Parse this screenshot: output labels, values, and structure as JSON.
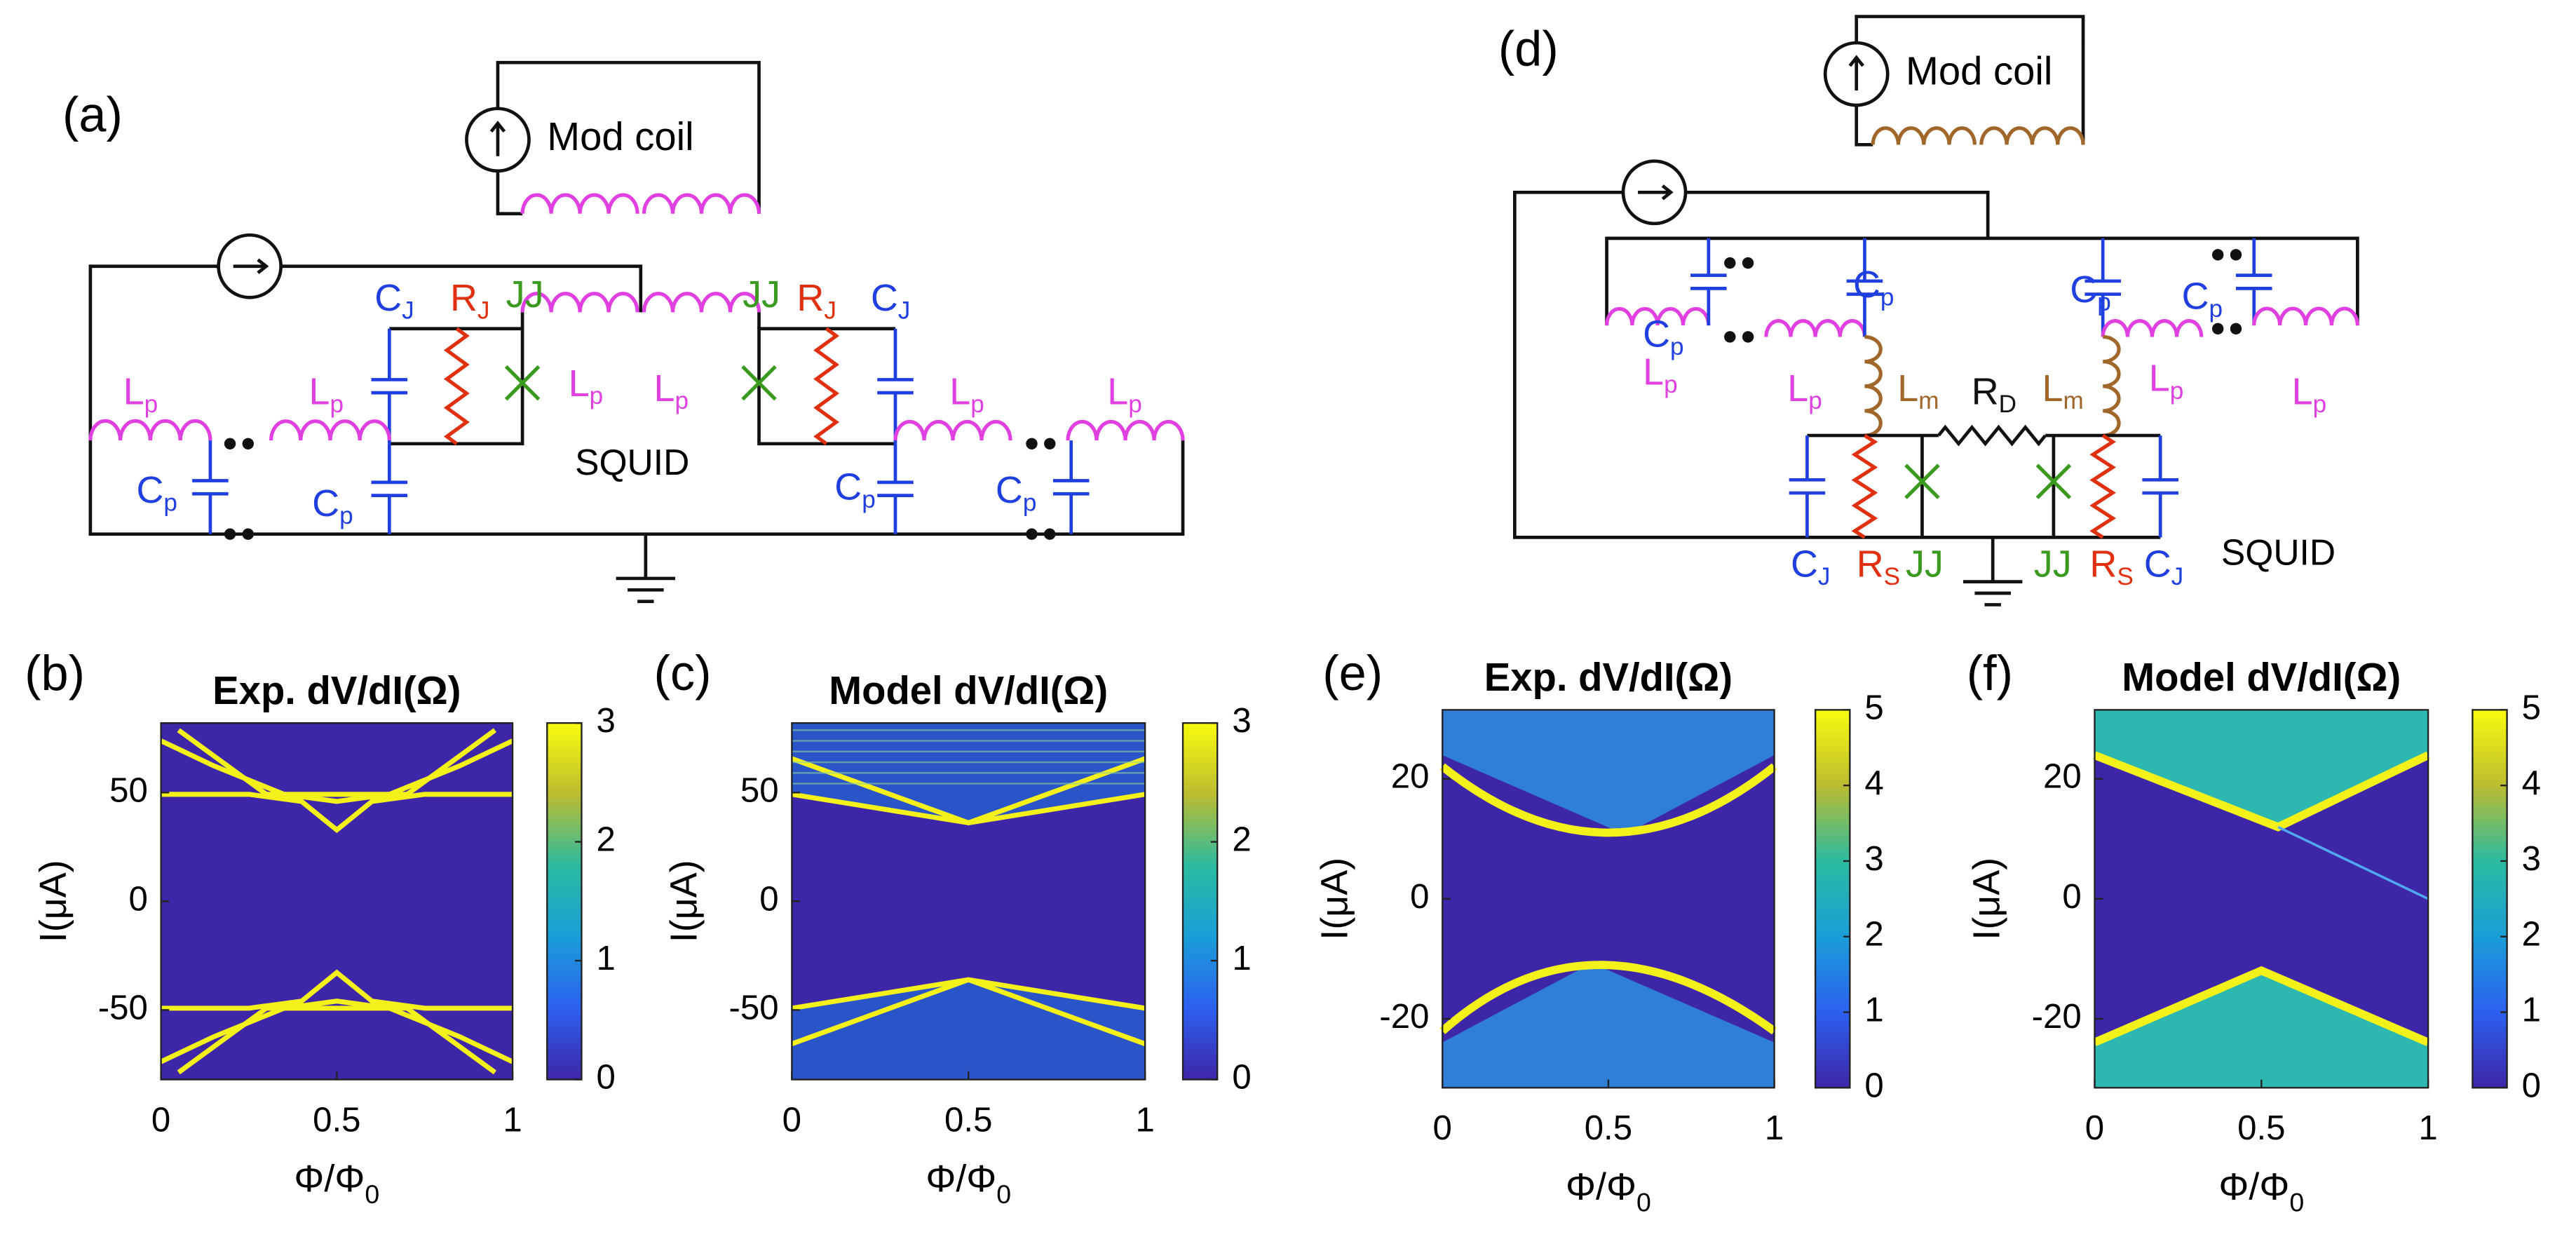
{
  "circuit_a": {
    "label": "(a)",
    "mod_coil": "Mod coil",
    "squid": "SQUID",
    "labels": [
      {
        "main": "C",
        "sub": "J"
      },
      {
        "main": "R",
        "sub": "J"
      },
      {
        "main": "JJ"
      },
      {
        "main": "L",
        "sub": "p"
      },
      {
        "main": "L",
        "sub": "p"
      },
      {
        "main": "JJ"
      },
      {
        "main": "R",
        "sub": "J"
      },
      {
        "main": "C",
        "sub": "J"
      },
      {
        "main": "L",
        "sub": "p"
      },
      {
        "main": "L",
        "sub": "p"
      },
      {
        "main": "C",
        "sub": "p"
      },
      {
        "main": "C",
        "sub": "p"
      },
      {
        "main": "L",
        "sub": "p"
      },
      {
        "main": "C",
        "sub": "p"
      },
      {
        "main": "L",
        "sub": "p"
      },
      {
        "main": "C",
        "sub": "p"
      }
    ]
  },
  "circuit_d": {
    "label": "(d)",
    "mod_coil": "Mod coil",
    "squid": "SQUID",
    "labels": [
      {
        "main": "C",
        "sub": "p"
      },
      {
        "main": "C",
        "sub": "p"
      },
      {
        "main": "C",
        "sub": "p"
      },
      {
        "main": "C",
        "sub": "p"
      },
      {
        "main": "L",
        "sub": "p"
      },
      {
        "main": "L",
        "sub": "p"
      },
      {
        "main": "L",
        "sub": "m"
      },
      {
        "main": "R",
        "sub": "D"
      },
      {
        "main": "L",
        "sub": "m"
      },
      {
        "main": "L",
        "sub": "p"
      },
      {
        "main": "L",
        "sub": "p"
      },
      {
        "main": "C",
        "sub": "J"
      },
      {
        "main": "R",
        "sub": "S"
      },
      {
        "main": "JJ"
      },
      {
        "main": "JJ"
      },
      {
        "main": "R",
        "sub": "S"
      },
      {
        "main": "C",
        "sub": "J"
      }
    ]
  },
  "panels": [
    {
      "label": "(b)",
      "title": "Exp. dV/dI(Ω)",
      "ylabel": "I(μA)",
      "xlabel": {
        "main": "Φ/Φ",
        "sub": "0"
      },
      "xlim": [
        0,
        1
      ],
      "xticks": [
        0,
        0.5,
        1
      ],
      "ylim": [
        -82,
        82
      ],
      "yticks": [
        -50,
        0,
        50
      ],
      "clim": [
        0,
        3
      ],
      "cticks": [
        0,
        1,
        2,
        3
      ]
    },
    {
      "label": "(c)",
      "title": "Model dV/dI(Ω)",
      "ylabel": "I(μA)",
      "xlabel": {
        "main": "Φ/Φ",
        "sub": "0"
      },
      "xlim": [
        0,
        1
      ],
      "xticks": [
        0,
        0.5,
        1
      ],
      "ylim": [
        -82,
        82
      ],
      "yticks": [
        -50,
        0,
        50
      ],
      "clim": [
        0,
        3
      ],
      "cticks": [
        0,
        1,
        2,
        3
      ]
    },
    {
      "label": "(e)",
      "title": "Exp. dV/dI(Ω)",
      "ylabel": "I(μA)",
      "xlabel": {
        "main": "Φ/Φ",
        "sub": "0"
      },
      "xlim": [
        0,
        1
      ],
      "xticks": [
        0,
        0.5,
        1
      ],
      "ylim": [
        -31.5,
        31.5
      ],
      "yticks": [
        -20,
        0,
        20
      ],
      "clim": [
        0,
        5
      ],
      "cticks": [
        0,
        1,
        2,
        3,
        4,
        5
      ]
    },
    {
      "label": "(f)",
      "title": "Model dV/dI(Ω)",
      "ylabel": "I(μA)",
      "xlabel": {
        "main": "Φ/Φ",
        "sub": "0"
      },
      "xlim": [
        0,
        1
      ],
      "xticks": [
        0,
        0.5,
        1
      ],
      "ylim": [
        -31.5,
        31.5
      ],
      "yticks": [
        -20,
        0,
        20
      ],
      "clim": [
        0,
        5
      ],
      "cticks": [
        0,
        1,
        2,
        3,
        4,
        5
      ]
    }
  ]
}
